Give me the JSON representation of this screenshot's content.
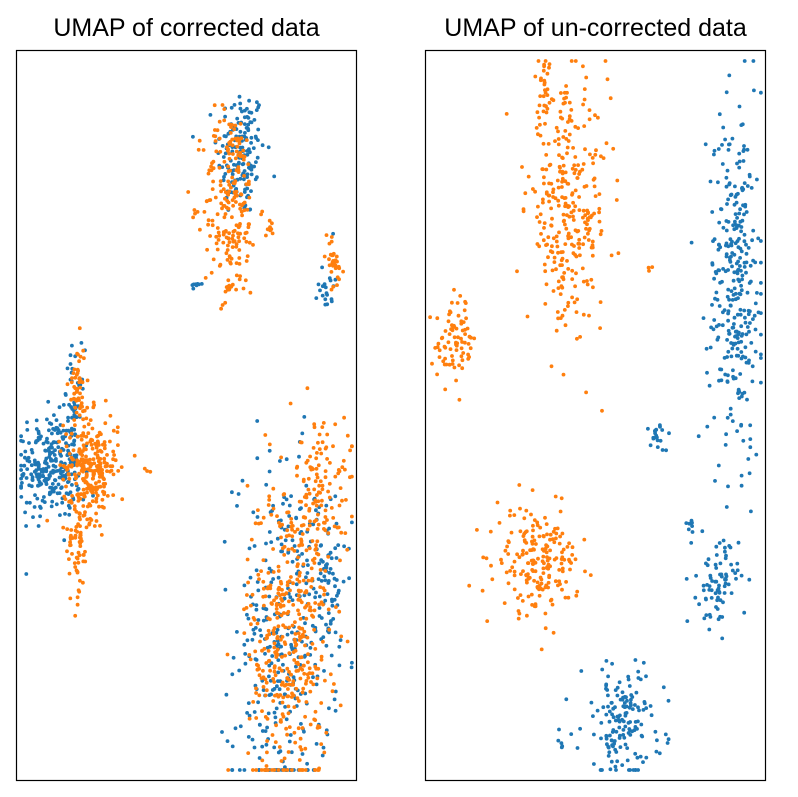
{
  "chart_data": [
    {
      "type": "scatter",
      "title": "UMAP of corrected data",
      "xlabel": "",
      "ylabel": "",
      "grid": false,
      "legend": "none",
      "axes_ticks": "none",
      "series": [
        {
          "color": "#1f77b4",
          "clusters": [
            {
              "cx": 0.66,
              "cy": 0.86,
              "sx": 0.035,
              "sy": 0.045,
              "n": 160
            },
            {
              "cx": 0.1,
              "cy": 0.43,
              "sx": 0.045,
              "sy": 0.035,
              "n": 260
            },
            {
              "cx": 0.17,
              "cy": 0.49,
              "sx": 0.015,
              "sy": 0.05,
              "n": 60
            },
            {
              "cx": 0.78,
              "cy": 0.18,
              "sx": 0.07,
              "sy": 0.13,
              "n": 320
            },
            {
              "cx": 0.91,
              "cy": 0.28,
              "sx": 0.03,
              "sy": 0.06,
              "n": 80
            },
            {
              "cx": 0.91,
              "cy": 0.68,
              "sx": 0.012,
              "sy": 0.02,
              "n": 20
            },
            {
              "cx": 0.53,
              "cy": 0.68,
              "sx": 0.008,
              "sy": 0.006,
              "n": 8
            }
          ]
        },
        {
          "color": "#ff7f0e",
          "clusters": [
            {
              "cx": 0.63,
              "cy": 0.79,
              "sx": 0.04,
              "sy": 0.065,
              "n": 220
            },
            {
              "cx": 0.22,
              "cy": 0.43,
              "sx": 0.04,
              "sy": 0.035,
              "n": 260
            },
            {
              "cx": 0.18,
              "cy": 0.32,
              "sx": 0.015,
              "sy": 0.04,
              "n": 60
            },
            {
              "cx": 0.18,
              "cy": 0.54,
              "sx": 0.012,
              "sy": 0.03,
              "n": 50
            },
            {
              "cx": 0.8,
              "cy": 0.2,
              "sx": 0.06,
              "sy": 0.11,
              "n": 420
            },
            {
              "cx": 0.9,
              "cy": 0.4,
              "sx": 0.04,
              "sy": 0.05,
              "n": 120
            },
            {
              "cx": 0.93,
              "cy": 0.71,
              "sx": 0.015,
              "sy": 0.02,
              "n": 30
            },
            {
              "cx": 0.62,
              "cy": 0.67,
              "sx": 0.01,
              "sy": 0.006,
              "n": 8
            },
            {
              "cx": 0.75,
              "cy": 0.76,
              "sx": 0.01,
              "sy": 0.008,
              "n": 8
            },
            {
              "cx": 0.38,
              "cy": 0.42,
              "sx": 0.005,
              "sy": 0.005,
              "n": 3
            }
          ]
        }
      ]
    },
    {
      "type": "scatter",
      "title": "UMAP of un-corrected data",
      "xlabel": "",
      "ylabel": "",
      "grid": false,
      "legend": "none",
      "axes_ticks": "none",
      "series": [
        {
          "color": "#1f77b4",
          "clusters": [
            {
              "cx": 0.91,
              "cy": 0.68,
              "sx": 0.04,
              "sy": 0.12,
              "n": 320
            },
            {
              "cx": 0.68,
              "cy": 0.47,
              "sx": 0.015,
              "sy": 0.01,
              "n": 20
            },
            {
              "cx": 0.86,
              "cy": 0.27,
              "sx": 0.03,
              "sy": 0.03,
              "n": 80
            },
            {
              "cx": 0.78,
              "cy": 0.35,
              "sx": 0.01,
              "sy": 0.01,
              "n": 8
            },
            {
              "cx": 0.58,
              "cy": 0.08,
              "sx": 0.06,
              "sy": 0.04,
              "n": 160
            },
            {
              "cx": 0.39,
              "cy": 0.05,
              "sx": 0.01,
              "sy": 0.008,
              "n": 5
            }
          ]
        },
        {
          "color": "#ff7f0e",
          "clusters": [
            {
              "cx": 0.42,
              "cy": 0.78,
              "sx": 0.06,
              "sy": 0.08,
              "n": 300
            },
            {
              "cx": 0.35,
              "cy": 0.94,
              "sx": 0.01,
              "sy": 0.025,
              "n": 30
            },
            {
              "cx": 0.09,
              "cy": 0.6,
              "sx": 0.03,
              "sy": 0.03,
              "n": 80
            },
            {
              "cx": 0.33,
              "cy": 0.3,
              "sx": 0.06,
              "sy": 0.035,
              "n": 200
            },
            {
              "cx": 0.66,
              "cy": 0.7,
              "sx": 0.005,
              "sy": 0.004,
              "n": 3
            }
          ]
        }
      ]
    }
  ]
}
